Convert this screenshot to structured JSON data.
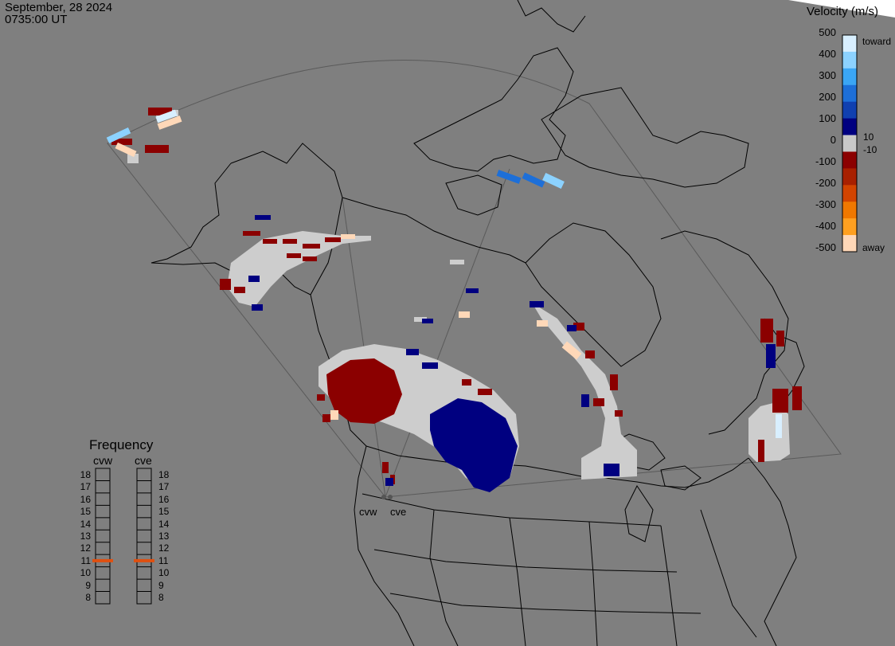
{
  "header": {
    "date": "September, 28 2024",
    "time": "0735:00 UT"
  },
  "colorbar": {
    "title": "Velocity (m/s)",
    "ticks": [
      "500",
      "400",
      "300",
      "200",
      "100",
      "0",
      "-100",
      "-200",
      "-300",
      "-400",
      "-500"
    ],
    "tag_10": "10",
    "tag_neg10": "-10",
    "toward_label": "toward",
    "away_label": "away",
    "colors": [
      "#d8efff",
      "#8cd2ff",
      "#3aa6f5",
      "#1d6fd8",
      "#1040b0",
      "#000080",
      "#c8c8c8",
      "#8b0000",
      "#a82000",
      "#d24400",
      "#f07800",
      "#ffa020",
      "#ffd8b8"
    ]
  },
  "frequency": {
    "title": "Frequency",
    "radars": [
      "cvw",
      "cve"
    ],
    "scale": [
      "18",
      "17",
      "16",
      "15",
      "14",
      "13",
      "12",
      "11",
      "10",
      "9",
      "8"
    ],
    "selected": [
      11,
      11
    ],
    "marker_color": "#e05010"
  },
  "sites": [
    "cvw",
    "cve"
  ],
  "map": {
    "background": "#7f7f7f",
    "land_outline": "#000000",
    "ground_scatter": "#cdcdcd",
    "fov_line": "#5a5a5a"
  }
}
